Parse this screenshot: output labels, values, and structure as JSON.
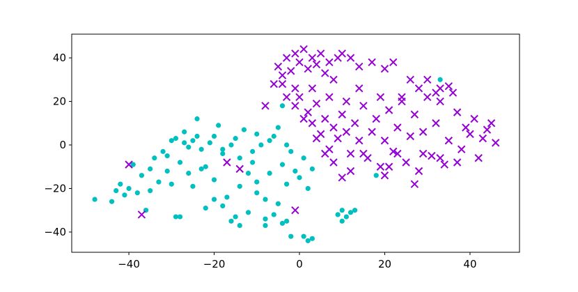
{
  "chart_data": {
    "type": "scatter",
    "xlim": [
      -53.4,
      51.6
    ],
    "ylim": [
      -49.3,
      50.9
    ],
    "xticks": [
      {
        "value": -40,
        "label": "−40"
      },
      {
        "value": -20,
        "label": "−20"
      },
      0,
      20,
      40
    ],
    "yticks": [
      {
        "value": -40,
        "label": "−40"
      },
      {
        "value": -20,
        "label": "−20"
      },
      0,
      20,
      40
    ],
    "grid": false,
    "series": [
      {
        "color": "#00bfbf",
        "marker": "o",
        "x": [
          -48,
          -44,
          -43,
          -42,
          -41,
          -40,
          -39,
          -38,
          -37,
          -36,
          -35,
          -34,
          -33,
          -32,
          -31,
          -30,
          -29,
          -28,
          -27,
          -26,
          -25,
          -24,
          -23,
          -22,
          -21,
          -20,
          -19,
          -18,
          -17,
          -16,
          -15,
          -14,
          -13,
          -12,
          -11,
          -10,
          -9,
          -8,
          -7,
          -6,
          -5,
          -4,
          -3,
          -2,
          -1,
          0,
          1,
          2,
          3,
          -25,
          -23,
          -27,
          -29,
          -24,
          -20,
          -18,
          -16,
          -14,
          -12,
          -10,
          -8,
          -6,
          -4,
          -15,
          -18,
          -20,
          -22,
          -26,
          -31,
          -35,
          -30,
          -28,
          -10,
          -5,
          -3,
          -7,
          -11,
          9,
          10,
          11,
          12,
          13,
          10,
          1,
          2,
          3,
          -2,
          -14,
          -8,
          -3,
          33,
          -4,
          18
        ],
        "values": [
          -25,
          -26,
          -21,
          -18,
          -23,
          -20,
          -9,
          -22,
          -14,
          -30,
          -21,
          -6,
          -17,
          -3,
          -12,
          2,
          -33,
          -8,
          6,
          -1,
          -19,
          4,
          -11,
          -29,
          1,
          -16,
          9,
          -4,
          -24,
          -35,
          3,
          -19,
          7,
          -31,
          -8,
          -22,
          0,
          -34,
          -13,
          4,
          -27,
          -9,
          -18,
          -3,
          -12,
          -15,
          -6,
          -20,
          -11,
          2,
          -2,
          1,
          3,
          12,
          4,
          -2,
          0,
          -6,
          -13,
          -17,
          -25,
          -32,
          -36,
          -33,
          -28,
          -25,
          -10,
          -13,
          -5,
          -11,
          -18,
          -33,
          5,
          8,
          0,
          2,
          -3,
          -32,
          -30,
          -33,
          -31,
          -30,
          -35,
          -42,
          -44,
          -43,
          -42,
          -37,
          -37,
          -35,
          30,
          18,
          -14
        ]
      },
      {
        "color": "#9400d3",
        "marker": "x",
        "x": [
          -5,
          -3,
          -1,
          0,
          1,
          2,
          3,
          4,
          5,
          6,
          7,
          8,
          -4,
          -2,
          9,
          10,
          12,
          14,
          17,
          20,
          22,
          -4,
          -6,
          -8,
          -1,
          0,
          2,
          3,
          4,
          5,
          6,
          7,
          8,
          9,
          10,
          11,
          12,
          13,
          14,
          15,
          16,
          17,
          18,
          19,
          20,
          21,
          22,
          23,
          24,
          25,
          26,
          27,
          28,
          29,
          30,
          31,
          32,
          33,
          34,
          35,
          36,
          37,
          38,
          39,
          40,
          41,
          42,
          43,
          44,
          45,
          46,
          30,
          33,
          35,
          32,
          28,
          26,
          24,
          19,
          14,
          11,
          12,
          8,
          10,
          -1,
          -40,
          -37,
          -17,
          -14,
          20,
          23,
          27,
          33,
          37,
          29,
          21,
          15,
          6,
          4,
          1,
          -3,
          -1,
          3,
          7
        ],
        "values": [
          36,
          40,
          42,
          38,
          44,
          35,
          40,
          37,
          42,
          33,
          38,
          30,
          32,
          34,
          40,
          42,
          40,
          36,
          38,
          35,
          38,
          28,
          28,
          18,
          18,
          22,
          15,
          10,
          19,
          5,
          12,
          -2,
          8,
          3,
          14,
          6,
          -4,
          10,
          2,
          18,
          -6,
          6,
          12,
          -10,
          2,
          16,
          -3,
          8,
          20,
          -8,
          4,
          14,
          -12,
          6,
          22,
          -5,
          10,
          26,
          -9,
          2,
          24,
          15,
          -2,
          8,
          5,
          12,
          -6,
          3,
          7,
          10,
          1,
          30,
          20,
          27,
          24,
          26,
          30,
          22,
          22,
          26,
          20,
          -12,
          -8,
          -15,
          -30,
          -9,
          -32,
          -8,
          -11,
          -14,
          -4,
          -18,
          -6,
          -8,
          -4,
          -10,
          -4,
          -4,
          3,
          12,
          22,
          26,
          26,
          22
        ]
      }
    ]
  }
}
